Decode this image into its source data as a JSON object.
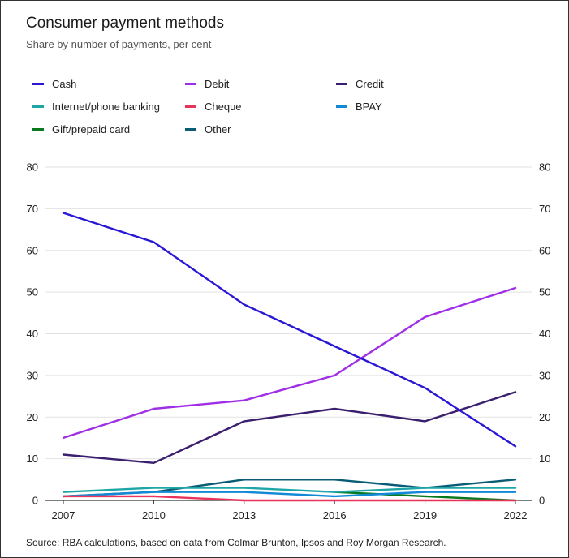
{
  "title": "Consumer payment methods",
  "subtitle": "Share by number of payments, per cent",
  "source": "Source: RBA calculations, based on data from Colmar Brunton, Ipsos and Roy Morgan Research.",
  "chart_data": {
    "type": "line",
    "title": "Consumer payment methods",
    "subtitle": "Share by number of payments, per cent",
    "x": [
      2007,
      2010,
      2013,
      2016,
      2019,
      2022
    ],
    "x_tick_labels": [
      "2007",
      "2010",
      "2013",
      "2016",
      "2019",
      "2022"
    ],
    "ylim": [
      0,
      80
    ],
    "y_ticks": [
      0,
      10,
      20,
      30,
      40,
      50,
      60,
      70,
      80
    ],
    "y_tick_labels": [
      "0",
      "10",
      "20",
      "30",
      "40",
      "50",
      "60",
      "70",
      "80"
    ],
    "grid": true,
    "legend_placement": "top",
    "dual_y_axis": true,
    "series": [
      {
        "name": "Cash",
        "color": "#2a17d6",
        "values": [
          69,
          62,
          47,
          37,
          27,
          13
        ]
      },
      {
        "name": "Debit",
        "color": "#a02ee6",
        "values": [
          15,
          22,
          24,
          30,
          44,
          51
        ]
      },
      {
        "name": "Credit",
        "color": "#3a1f6e",
        "values": [
          11,
          9,
          19,
          22,
          19,
          26
        ]
      },
      {
        "name": "Internet/phone banking",
        "color": "#1ea6a6",
        "values": [
          2,
          3,
          3,
          2,
          3,
          3
        ]
      },
      {
        "name": "Cheque",
        "color": "#e8345a",
        "values": [
          1,
          1,
          0,
          0,
          0,
          0
        ]
      },
      {
        "name": "BPAY",
        "color": "#1189d6",
        "values": [
          1,
          2,
          2,
          1,
          2,
          2
        ]
      },
      {
        "name": "Gift/prepaid card",
        "color": "#0a7a1e",
        "values": [
          null,
          null,
          null,
          2,
          1,
          0
        ]
      },
      {
        "name": "Other",
        "color": "#0a5c75",
        "values": [
          1,
          2,
          5,
          5,
          3,
          5
        ]
      }
    ]
  }
}
